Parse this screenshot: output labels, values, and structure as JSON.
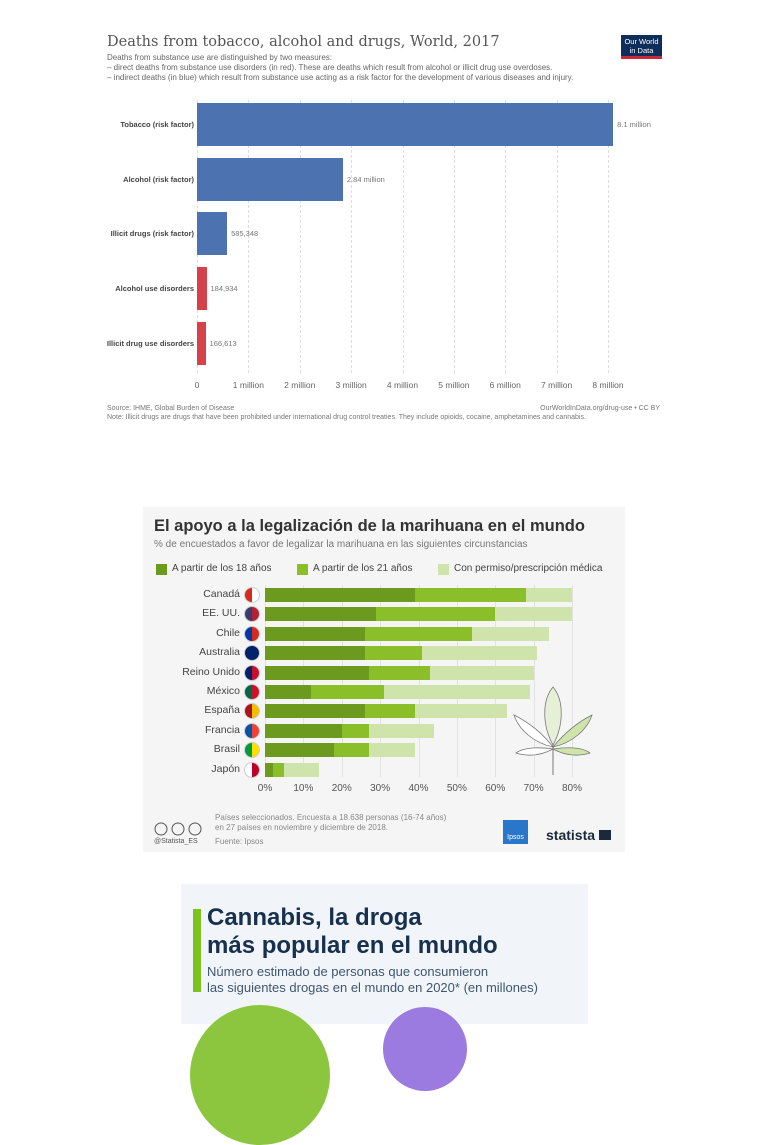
{
  "chart_data": [
    {
      "type": "bar",
      "orientation": "horizontal",
      "title": "Deaths from tobacco, alcohol and drugs, World, 2017",
      "subtitle": [
        "Deaths from substance use are distinguished by two measures:",
        "– direct deaths from substance use disorders (in red). These are deaths which result from alcohol or illicit drug use overdoses.",
        "– indirect deaths (in blue) which result from substance use acting as a risk factor for the development of various diseases and injury."
      ],
      "categories": [
        "Tobacco (risk factor)",
        "Alcohol (risk factor)",
        "Illicit drugs (risk factor)",
        "Alcohol use disorders",
        "Illicit drug use disorders"
      ],
      "values": [
        8100000,
        2840000,
        585348,
        184934,
        166613
      ],
      "labels": [
        "8.1 million",
        "2.84 million",
        "585,348",
        "184,934",
        "166,613"
      ],
      "colors": [
        "#4c72b0",
        "#4c72b0",
        "#4c72b0",
        "#d6424a",
        "#d6424a"
      ],
      "xlim": [
        0,
        8000000
      ],
      "xticks": [
        "0",
        "1 million",
        "2 million",
        "3 million",
        "4 million",
        "5 million",
        "6 million",
        "7 million",
        "8 million"
      ],
      "grid": true,
      "source": "Source: IHME, Global Burden of Disease",
      "credit": "OurWorldInData.org/drug-use • CC BY",
      "note": "Note: Illicit drugs are drugs that have been prohibited under international drug control treaties. They include opioids, cocaine, amphetamines and cannabis.",
      "logo": "Our World in Data"
    },
    {
      "type": "bar",
      "orientation": "horizontal",
      "stacked": true,
      "title": "El apoyo a la legalización de la marihuana en el mundo",
      "subtitle": "% de encuestados a favor de legalizar la marihuana en las siguientes circunstancias",
      "categories": [
        "Canadá",
        "EE. UU.",
        "Chile",
        "Australia",
        "Reino Unido",
        "México",
        "España",
        "Francia",
        "Brasil",
        "Japón"
      ],
      "series": [
        {
          "name": "A partir de los 18 años",
          "color": "#6b9a1e",
          "values": [
            39,
            29,
            26,
            26,
            27,
            12,
            26,
            20,
            18,
            2
          ]
        },
        {
          "name": "A partir de los 21 años",
          "color": "#8abf2a",
          "values": [
            29,
            31,
            28,
            15,
            16,
            19,
            13,
            7,
            9,
            3
          ]
        },
        {
          "name": "Con permiso/prescripción médica",
          "color": "#cfe4ab",
          "values": [
            12,
            20,
            20,
            30,
            27,
            38,
            24,
            17,
            12,
            9
          ]
        }
      ],
      "xlim": [
        0,
        80
      ],
      "xticks": [
        "0%",
        "10%",
        "20%",
        "30%",
        "40%",
        "50%",
        "60%",
        "70%",
        "80%"
      ],
      "legend": "top",
      "footnote": [
        "Países seleccionados. Encuesta a 18.638 personas (16-74 años)",
        "en 27 países en noviembre y diciembre de 2018."
      ],
      "source": "Fuente: Ipsos",
      "handle": "@Statista_ES",
      "logos": [
        "Ipsos",
        "statista"
      ]
    },
    {
      "type": "other",
      "title": [
        "Cannabis, la droga",
        "más popular en el mundo"
      ],
      "subtitle": [
        "Número estimado de personas que consumieron",
        "las siguientes drogas en el mundo en 2020* (en millones)"
      ]
    }
  ]
}
